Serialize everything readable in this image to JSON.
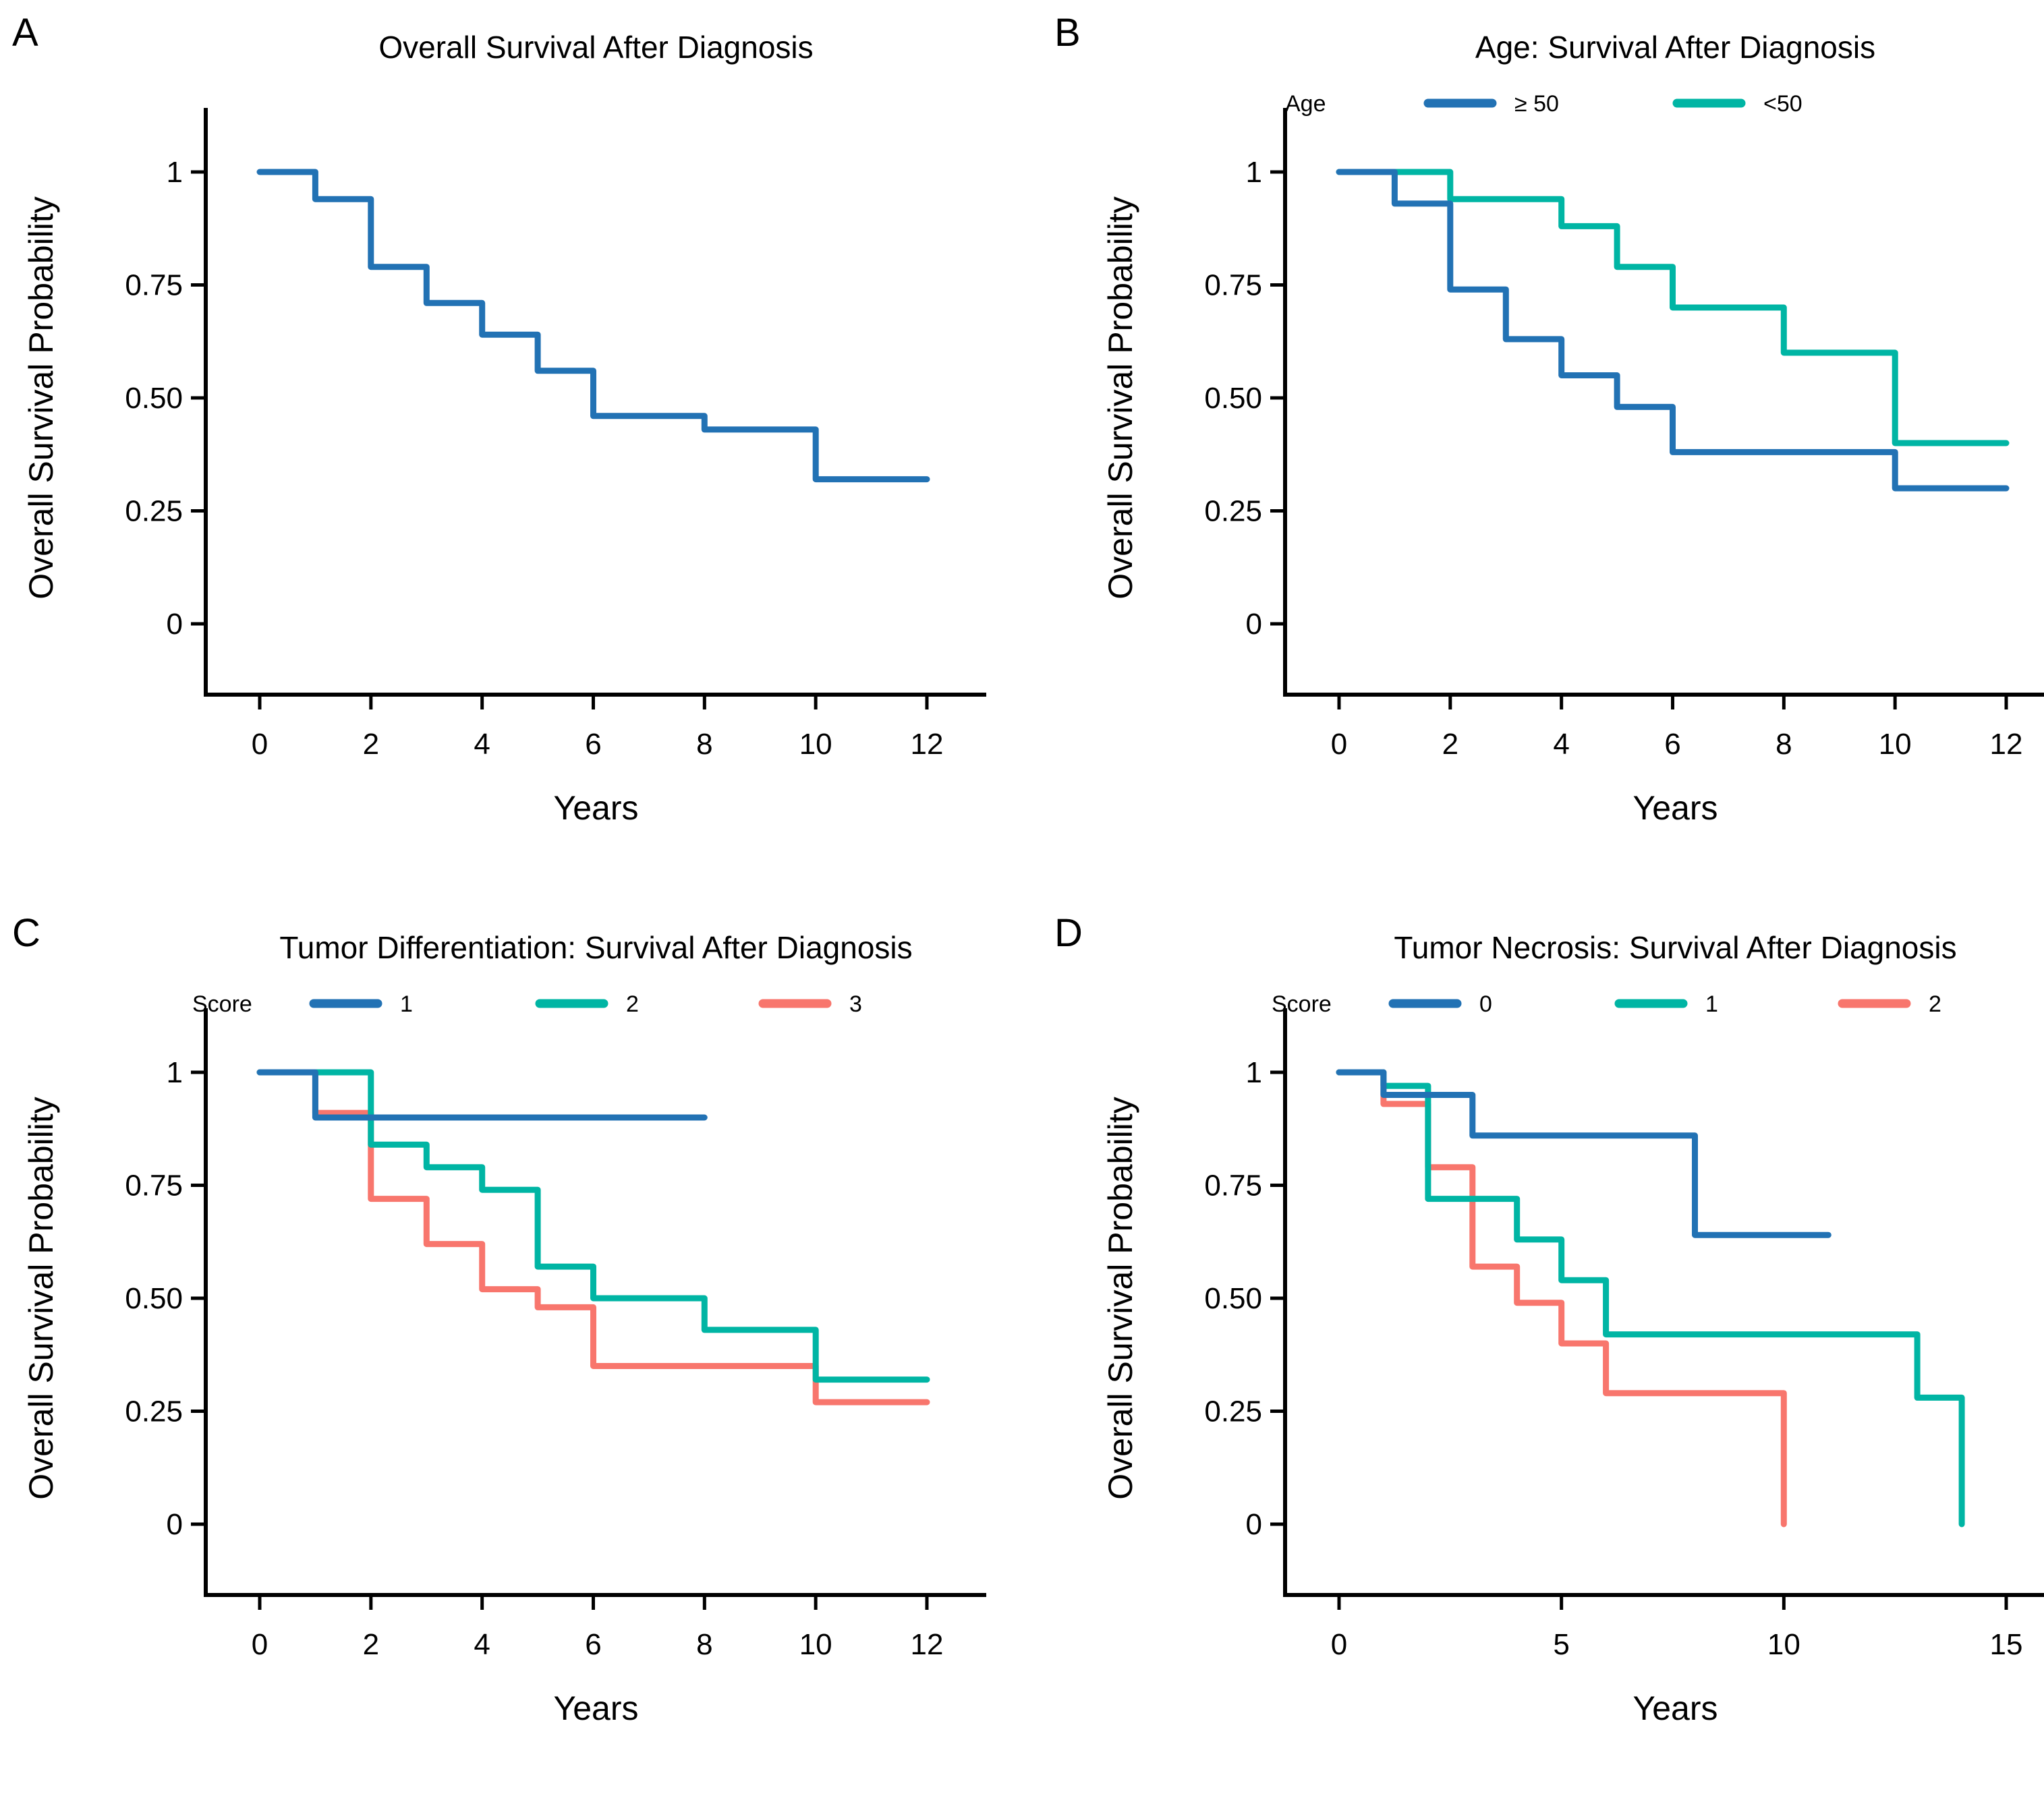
{
  "figure_background": "#ffffff",
  "colors": {
    "blue": "#2272B4",
    "teal": "#00B5A4",
    "red": "#F8766D",
    "axis": "#000000"
  },
  "chart_data": [
    {
      "panel_label": "A",
      "type": "line",
      "subtype": "kaplan-meier-step",
      "title": "Overall Survival After Diagnosis",
      "xlabel": "Years",
      "ylabel": "Overall Survival Probability",
      "xticks": [
        0,
        2,
        4,
        6,
        8,
        10,
        12
      ],
      "xlim": [
        0,
        12
      ],
      "yticks": [
        1,
        0.75,
        0.5,
        0.25,
        0
      ],
      "ytick_labels": [
        "1",
        "0.75",
        "0.50",
        "0.25",
        "0"
      ],
      "ylim": [
        0,
        1
      ],
      "grid": false,
      "legend": null,
      "series": [
        {
          "label": "",
          "color": "#2272B4",
          "steps": [
            [
              0,
              1
            ],
            [
              1,
              0.94
            ],
            [
              2,
              0.79
            ],
            [
              3,
              0.71
            ],
            [
              4,
              0.64
            ],
            [
              5,
              0.56
            ],
            [
              6,
              0.46
            ],
            [
              8,
              0.43
            ],
            [
              10,
              0.32
            ]
          ],
          "end_x": 12
        }
      ]
    },
    {
      "panel_label": "B",
      "type": "line",
      "subtype": "kaplan-meier-step",
      "title": "Age: Survival After Diagnosis",
      "xlabel": "Years",
      "ylabel": "Overall Survival Probability",
      "xticks": [
        0,
        2,
        4,
        6,
        8,
        10,
        12
      ],
      "xlim": [
        0,
        12
      ],
      "yticks": [
        1,
        0.75,
        0.5,
        0.25,
        0
      ],
      "ytick_labels": [
        "1",
        "0.75",
        "0.50",
        "0.25",
        "0"
      ],
      "ylim": [
        0,
        1
      ],
      "grid": false,
      "legend": {
        "title": "Age",
        "position": "top"
      },
      "series": [
        {
          "label": "≥ 50",
          "color": "#2272B4",
          "steps": [
            [
              0,
              1
            ],
            [
              1,
              0.93
            ],
            [
              2,
              0.74
            ],
            [
              3,
              0.63
            ],
            [
              4,
              0.55
            ],
            [
              5,
              0.48
            ],
            [
              6,
              0.38
            ],
            [
              10,
              0.3
            ]
          ],
          "end_x": 12
        },
        {
          "label": "<50",
          "color": "#00B5A4",
          "steps": [
            [
              0,
              1
            ],
            [
              2,
              0.94
            ],
            [
              4,
              0.88
            ],
            [
              5,
              0.79
            ],
            [
              6,
              0.7
            ],
            [
              8,
              0.6
            ],
            [
              10,
              0.4
            ]
          ],
          "end_x": 12
        }
      ]
    },
    {
      "panel_label": "C",
      "type": "line",
      "subtype": "kaplan-meier-step",
      "title": "Tumor Differentiation: Survival After Diagnosis",
      "xlabel": "Years",
      "ylabel": "Overall Survival Probability",
      "xticks": [
        0,
        2,
        4,
        6,
        8,
        10,
        12
      ],
      "xlim": [
        0,
        12
      ],
      "yticks": [
        1,
        0.75,
        0.5,
        0.25,
        0
      ],
      "ytick_labels": [
        "1",
        "0.75",
        "0.50",
        "0.25",
        "0"
      ],
      "ylim": [
        0,
        1
      ],
      "grid": false,
      "legend": {
        "title": "Score",
        "position": "top"
      },
      "series": [
        {
          "label": "1",
          "color": "#2272B4",
          "steps": [
            [
              0,
              1
            ],
            [
              1,
              0.9
            ]
          ],
          "end_x": 8
        },
        {
          "label": "2",
          "color": "#00B5A4",
          "steps": [
            [
              0,
              1
            ],
            [
              2,
              0.84
            ],
            [
              3,
              0.79
            ],
            [
              4,
              0.74
            ],
            [
              5,
              0.57
            ],
            [
              6,
              0.5
            ],
            [
              8,
              0.43
            ],
            [
              10,
              0.32
            ]
          ],
          "end_x": 12
        },
        {
          "label": "3",
          "color": "#F8766D",
          "steps": [
            [
              0,
              1
            ],
            [
              1,
              0.91
            ],
            [
              2,
              0.72
            ],
            [
              3,
              0.62
            ],
            [
              4,
              0.52
            ],
            [
              5,
              0.48
            ],
            [
              6,
              0.35
            ],
            [
              10,
              0.27
            ]
          ],
          "end_x": 12
        }
      ]
    },
    {
      "panel_label": "D",
      "type": "line",
      "subtype": "kaplan-meier-step",
      "title": "Tumor Necrosis: Survival After Diagnosis",
      "xlabel": "Years",
      "ylabel": "Overall Survival Probability",
      "xticks": [
        0,
        5,
        10,
        15
      ],
      "xlim": [
        0,
        15
      ],
      "yticks": [
        1,
        0.75,
        0.5,
        0.25,
        0
      ],
      "ytick_labels": [
        "1",
        "0.75",
        "0.50",
        "0.25",
        "0"
      ],
      "ylim": [
        0,
        1
      ],
      "grid": false,
      "legend": {
        "title": "Score",
        "position": "top"
      },
      "series": [
        {
          "label": "0",
          "color": "#2272B4",
          "steps": [
            [
              0,
              1
            ],
            [
              1,
              0.95
            ],
            [
              3,
              0.86
            ],
            [
              8,
              0.64
            ]
          ],
          "end_x": 11
        },
        {
          "label": "1",
          "color": "#00B5A4",
          "steps": [
            [
              0,
              1
            ],
            [
              1,
              0.97
            ],
            [
              2,
              0.72
            ],
            [
              4,
              0.63
            ],
            [
              5,
              0.54
            ],
            [
              6,
              0.42
            ],
            [
              13,
              0.28
            ],
            [
              14,
              0
            ]
          ],
          "end_x": 14
        },
        {
          "label": "2",
          "color": "#F8766D",
          "steps": [
            [
              0,
              1
            ],
            [
              1,
              0.93
            ],
            [
              2,
              0.79
            ],
            [
              3,
              0.57
            ],
            [
              4,
              0.49
            ],
            [
              5,
              0.4
            ],
            [
              6,
              0.29
            ],
            [
              10,
              0
            ]
          ],
          "end_x": 10
        }
      ]
    }
  ]
}
